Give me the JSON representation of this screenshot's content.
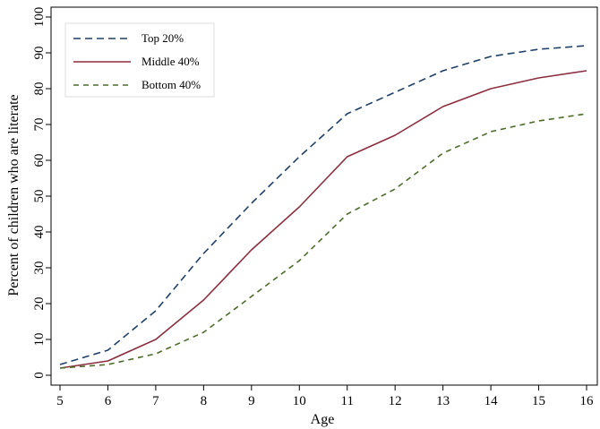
{
  "chart_data": {
    "type": "line",
    "title": "",
    "xlabel": "Age",
    "ylabel": "Percent of children who are literate",
    "x": [
      5,
      6,
      7,
      8,
      9,
      10,
      11,
      12,
      13,
      14,
      15,
      16
    ],
    "xlim": [
      5,
      16
    ],
    "ylim": [
      0,
      100
    ],
    "xticks": [
      "5",
      "6",
      "7",
      "8",
      "9",
      "10",
      "11",
      "12",
      "13",
      "14",
      "15",
      "16"
    ],
    "yticks": [
      "0",
      "10",
      "20",
      "30",
      "40",
      "50",
      "60",
      "70",
      "80",
      "90",
      "100"
    ],
    "grid": false,
    "legend_position": "top-left",
    "series": [
      {
        "name": "Top 20%",
        "color": "#1f3f66",
        "style": "dashed",
        "values": [
          3,
          7,
          18,
          34,
          48,
          61,
          73,
          79,
          85,
          89,
          91,
          92
        ]
      },
      {
        "name": "Middle 40%",
        "color": "#8b2f3f",
        "style": "solid",
        "values": [
          2,
          4,
          10,
          21,
          35,
          47,
          61,
          67,
          75,
          80,
          83,
          85
        ]
      },
      {
        "name": "Bottom 40%",
        "color": "#4d6b2a",
        "style": "dashed-short",
        "values": [
          2,
          3,
          6,
          12,
          22,
          32,
          45,
          52,
          62,
          68,
          71,
          73
        ]
      }
    ]
  }
}
